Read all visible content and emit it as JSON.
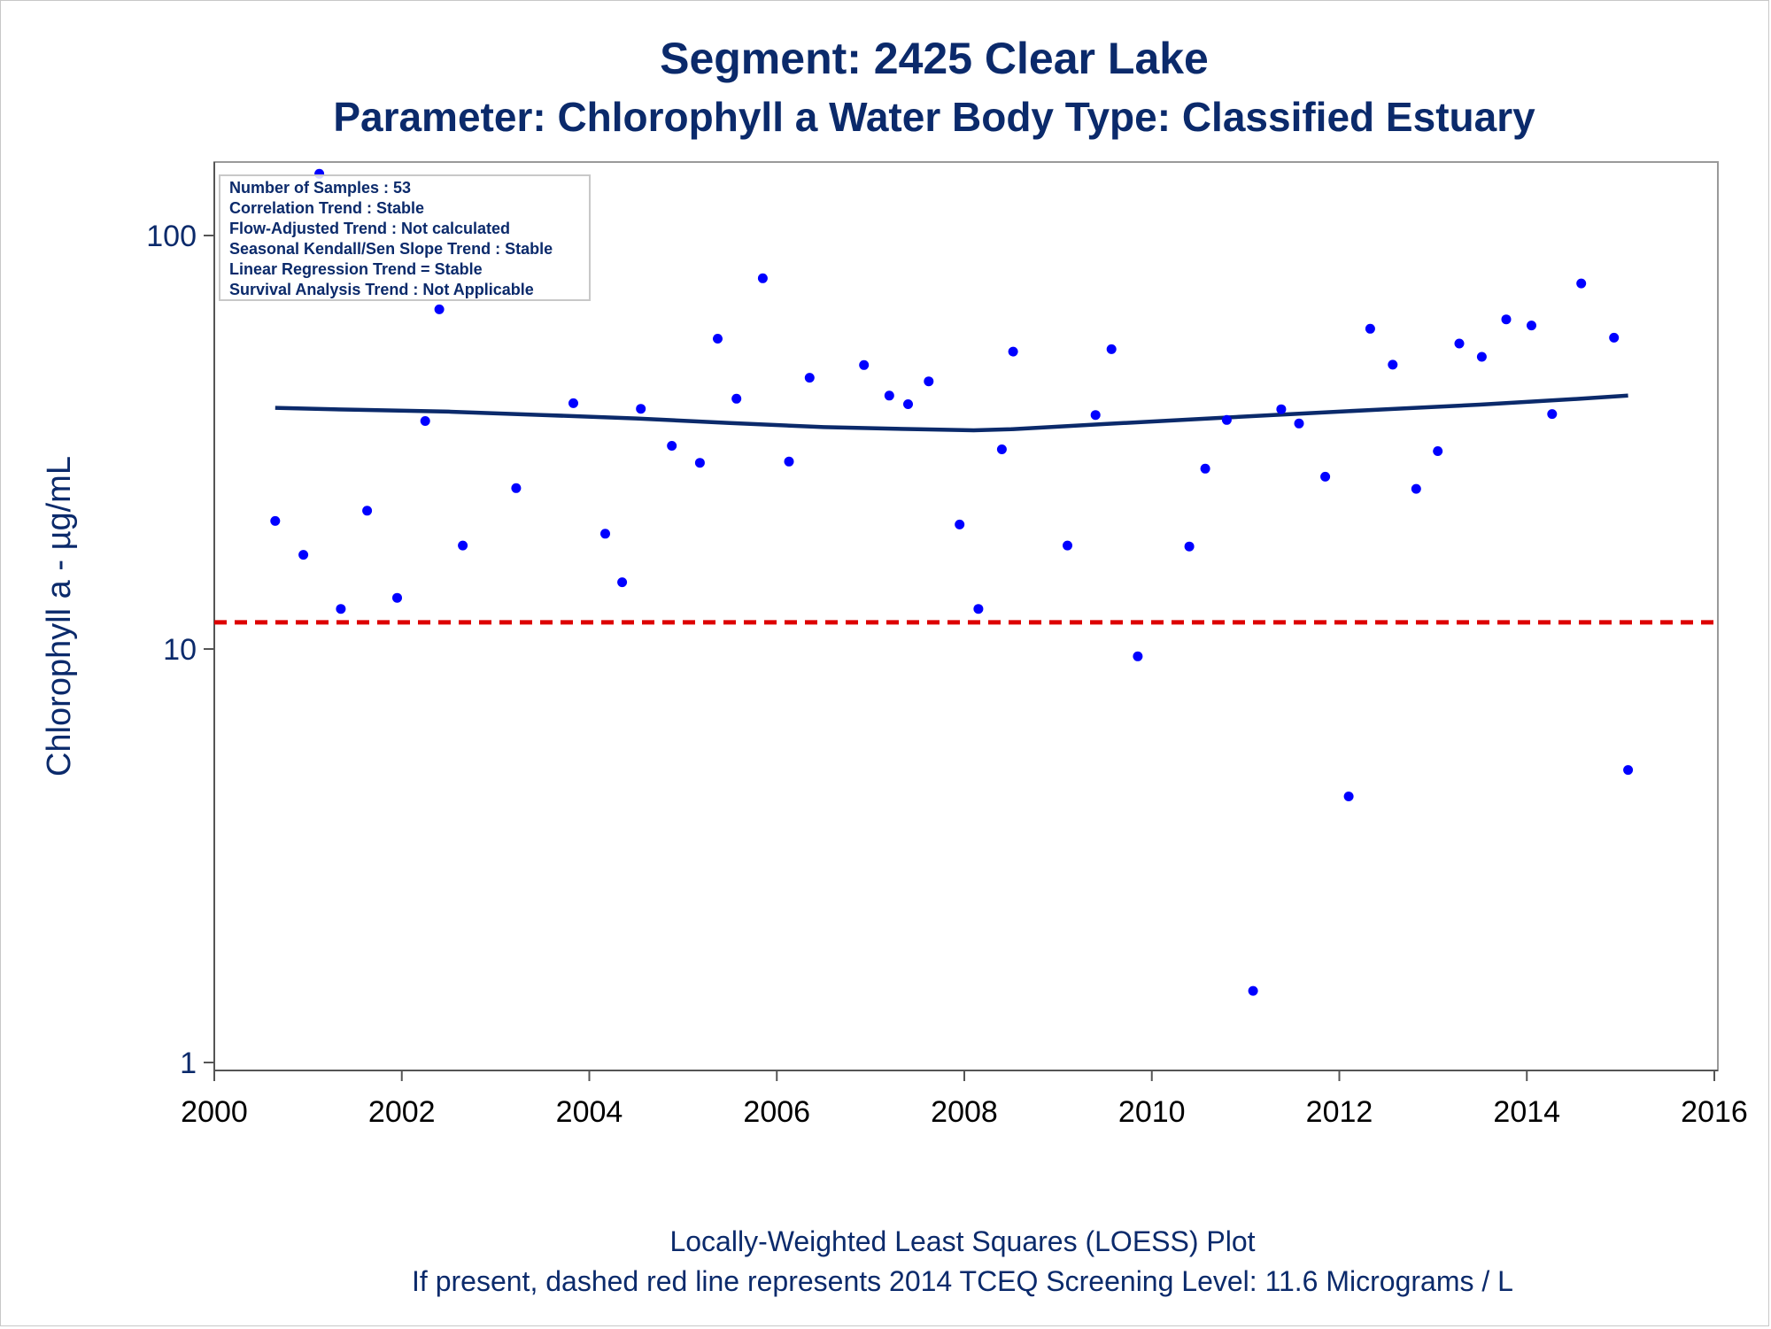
{
  "chart_data": {
    "type": "scatter",
    "title": "Segment: 2425  Clear Lake",
    "subtitle": "Parameter: Chlorophyll a   Water Body Type: Classified Estuary",
    "xlabel": "",
    "ylabel": "Chlorophyll a -  µg/mL",
    "footnotes": [
      "Locally-Weighted Least Squares (LOESS) Plot",
      "If present, dashed red line represents 2014 TCEQ Screening Level: 11.6 Micrograms / L"
    ],
    "x_scale": "linear",
    "y_scale": "log",
    "xlim": [
      2000,
      2016
    ],
    "ylim": [
      1,
      150
    ],
    "x_ticks": [
      "2000",
      "2002",
      "2004",
      "2006",
      "2008",
      "2010",
      "2012",
      "2014",
      "2016"
    ],
    "y_ticks": [
      "1",
      "10",
      "100"
    ],
    "grid": false,
    "stats_box": {
      "placement": "top-left",
      "lines": [
        "Number of Samples : 53",
        "Correlation Trend : Stable",
        "Flow-Adjusted Trend : Not calculated",
        "Seasonal Kendall/Sen Slope Trend : Stable",
        "Linear Regression Trend = Stable",
        "Survival Analysis Trend : Not Applicable"
      ]
    },
    "screening_level": {
      "value": 11.6,
      "color": "#dd0000",
      "style": "dashed"
    },
    "point_color": "#0000ff",
    "loess_color": "#0b2a6b",
    "points": [
      {
        "x": 2000.65,
        "y": 20.4
      },
      {
        "x": 2000.95,
        "y": 16.9
      },
      {
        "x": 2001.12,
        "y": 141
      },
      {
        "x": 2001.35,
        "y": 12.5
      },
      {
        "x": 2001.63,
        "y": 21.6
      },
      {
        "x": 2001.95,
        "y": 13.3
      },
      {
        "x": 2002.25,
        "y": 35.6
      },
      {
        "x": 2002.4,
        "y": 66.3
      },
      {
        "x": 2002.65,
        "y": 17.8
      },
      {
        "x": 2003.22,
        "y": 24.5
      },
      {
        "x": 2003.83,
        "y": 39.3
      },
      {
        "x": 2004.17,
        "y": 19.0
      },
      {
        "x": 2004.35,
        "y": 14.5
      },
      {
        "x": 2004.55,
        "y": 38.1
      },
      {
        "x": 2004.88,
        "y": 31.0
      },
      {
        "x": 2005.18,
        "y": 28.2
      },
      {
        "x": 2005.37,
        "y": 56.3
      },
      {
        "x": 2005.57,
        "y": 40.3
      },
      {
        "x": 2005.85,
        "y": 78.8
      },
      {
        "x": 2006.13,
        "y": 28.4
      },
      {
        "x": 2006.35,
        "y": 45.3
      },
      {
        "x": 2006.93,
        "y": 48.6
      },
      {
        "x": 2007.2,
        "y": 41.0
      },
      {
        "x": 2007.4,
        "y": 39.1
      },
      {
        "x": 2007.62,
        "y": 44.4
      },
      {
        "x": 2007.95,
        "y": 20.0
      },
      {
        "x": 2008.15,
        "y": 12.5
      },
      {
        "x": 2008.4,
        "y": 30.4
      },
      {
        "x": 2008.52,
        "y": 52.4
      },
      {
        "x": 2009.1,
        "y": 17.8
      },
      {
        "x": 2009.4,
        "y": 36.8
      },
      {
        "x": 2009.57,
        "y": 53.1
      },
      {
        "x": 2009.85,
        "y": 9.6
      },
      {
        "x": 2010.4,
        "y": 17.7
      },
      {
        "x": 2010.57,
        "y": 27.3
      },
      {
        "x": 2010.8,
        "y": 35.8
      },
      {
        "x": 2011.08,
        "y": 1.49
      },
      {
        "x": 2011.38,
        "y": 38.0
      },
      {
        "x": 2011.57,
        "y": 35.1
      },
      {
        "x": 2011.85,
        "y": 26.1
      },
      {
        "x": 2012.1,
        "y": 4.4
      },
      {
        "x": 2012.33,
        "y": 59.5
      },
      {
        "x": 2012.57,
        "y": 48.7
      },
      {
        "x": 2012.82,
        "y": 24.4
      },
      {
        "x": 2013.05,
        "y": 30.1
      },
      {
        "x": 2013.28,
        "y": 54.8
      },
      {
        "x": 2013.52,
        "y": 50.9
      },
      {
        "x": 2013.78,
        "y": 62.7
      },
      {
        "x": 2014.05,
        "y": 60.6
      },
      {
        "x": 2014.27,
        "y": 37.0
      },
      {
        "x": 2014.58,
        "y": 76.6
      },
      {
        "x": 2014.93,
        "y": 56.6
      },
      {
        "x": 2015.08,
        "y": 5.1
      }
    ],
    "loess": [
      {
        "x": 2000.65,
        "y": 38.3
      },
      {
        "x": 2001.5,
        "y": 37.9
      },
      {
        "x": 2002.5,
        "y": 37.5
      },
      {
        "x": 2003.5,
        "y": 36.8
      },
      {
        "x": 2004.5,
        "y": 36.1
      },
      {
        "x": 2005.5,
        "y": 35.2
      },
      {
        "x": 2006.5,
        "y": 34.4
      },
      {
        "x": 2007.5,
        "y": 34.0
      },
      {
        "x": 2008.1,
        "y": 33.8
      },
      {
        "x": 2008.5,
        "y": 34.0
      },
      {
        "x": 2009.5,
        "y": 35.0
      },
      {
        "x": 2010.5,
        "y": 36.0
      },
      {
        "x": 2011.5,
        "y": 37.0
      },
      {
        "x": 2012.5,
        "y": 38.0
      },
      {
        "x": 2013.5,
        "y": 39.0
      },
      {
        "x": 2014.5,
        "y": 40.2
      },
      {
        "x": 2015.08,
        "y": 41.0
      }
    ]
  }
}
